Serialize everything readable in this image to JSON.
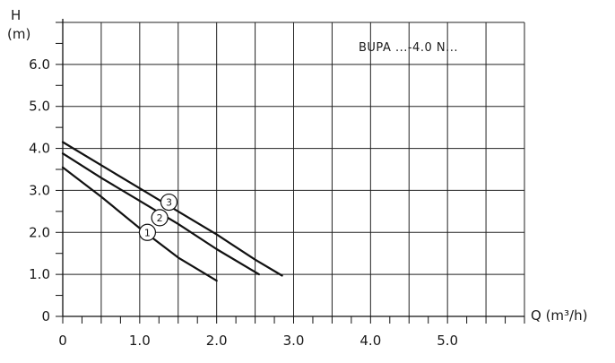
{
  "chart_data": {
    "type": "line",
    "title": "BUPA ...-4.0 N...",
    "ylabel_line1": "H",
    "ylabel_line2": "(m)",
    "xlabel": "Q (m³/h)",
    "xlim": [
      0,
      6.0
    ],
    "ylim": [
      0,
      7.0
    ],
    "x_ticks": [
      0,
      1.0,
      2.0,
      3.0,
      4.0,
      5.0
    ],
    "x_tick_labels": [
      "0",
      "1.0",
      "2.0",
      "3.0",
      "4.0",
      "5.0"
    ],
    "y_ticks": [
      0,
      1.0,
      2.0,
      3.0,
      4.0,
      5.0,
      6.0
    ],
    "y_tick_labels": [
      "0",
      "1.0",
      "2.0",
      "3.0",
      "4.0",
      "5.0",
      "6.0"
    ],
    "grid": true,
    "series": [
      {
        "name": "1",
        "x": [
          0,
          0.5,
          1.0,
          1.5,
          2.0
        ],
        "y": [
          3.55,
          2.85,
          2.1,
          1.4,
          0.85
        ],
        "label_at": [
          1.1,
          2.0
        ]
      },
      {
        "name": "2",
        "x": [
          0,
          0.5,
          1.0,
          1.5,
          2.0,
          2.55
        ],
        "y": [
          3.88,
          3.3,
          2.75,
          2.2,
          1.6,
          1.0
        ],
        "label_at": [
          1.26,
          2.35
        ]
      },
      {
        "name": "3",
        "x": [
          0,
          0.5,
          1.0,
          1.5,
          2.0,
          2.5,
          2.85
        ],
        "y": [
          4.15,
          3.6,
          3.05,
          2.5,
          1.95,
          1.35,
          0.97
        ],
        "label_at": [
          1.38,
          2.72
        ]
      }
    ]
  }
}
